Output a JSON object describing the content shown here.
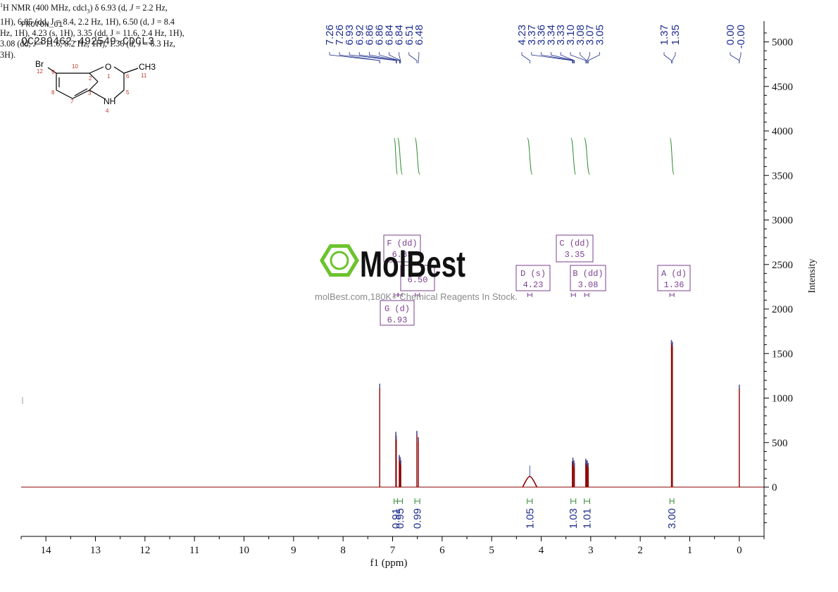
{
  "header": {
    "experiment": "PROTON_01",
    "sample_id": "QC289462-492549-CDCL3"
  },
  "structure": {
    "atoms": {
      "br": "Br",
      "o": "O",
      "nh": "NH",
      "ch3": "CH3"
    },
    "numbers": [
      "1",
      "2",
      "3",
      "4",
      "5",
      "6",
      "7",
      "8",
      "9",
      "10",
      "11",
      "12"
    ]
  },
  "nmr_text": {
    "superscript": "1",
    "line1": "H NMR (400 MHz, cdcl",
    "sub": "3",
    "line1b": ") δ 6.93 (d, ",
    "j": "J",
    "rest": " = 2.2 Hz, 1H), 6.85 (dd, J = 8.4, 2.2 Hz, 1H), 6.50 (d, J = 8.4 Hz, 1H), 4.23 (s, 1H), 3.35 (dd, J = 11.6, 2.4 Hz, 1H), 3.08 (dd, J = 11.6, 8.2 Hz, 1H), 1.36 (d, J = 6.3 Hz, 3H)."
  },
  "watermark": {
    "brand": "MolBest",
    "text": "molBest.com,180K+ Chemical Reagents In Stock."
  },
  "colors": {
    "spectrum": "#8b0000",
    "peak_label": "#1f2f8f",
    "integral": "#2e8b2e",
    "multiplet": "#7b3f8f",
    "logo_green": "#6cc32e"
  },
  "chart_data": {
    "type": "line",
    "title": "",
    "xlabel": "f1 (ppm)",
    "ylabel": "Intensity",
    "xlim": [
      14.5,
      -0.5
    ],
    "ylim": [
      -550,
      5200
    ],
    "x_ticks": [
      14,
      13,
      12,
      11,
      10,
      9,
      8,
      7,
      6,
      5,
      4,
      3,
      2,
      1,
      0
    ],
    "y_ticks": [
      0,
      500,
      1000,
      1500,
      2000,
      2500,
      3000,
      3500,
      4000,
      4500,
      5000
    ],
    "peak_labels": [
      {
        "group": "aromatic",
        "labels": [
          "7.26",
          "7.26",
          "6.93",
          "6.92",
          "6.86",
          "6.86",
          "6.84",
          "6.84",
          "6.51",
          "6.48"
        ]
      },
      {
        "group": "mid",
        "labels": [
          "4.23",
          "3.37",
          "3.36",
          "3.34",
          "3.33",
          "3.10",
          "3.08",
          "3.07",
          "3.05"
        ]
      },
      {
        "group": "methyl",
        "labels": [
          "1.37",
          "1.35"
        ]
      },
      {
        "group": "tms",
        "labels": [
          "0.00",
          "-0.00"
        ]
      }
    ],
    "peaks": [
      {
        "x": 7.26,
        "y": 1160,
        "type": "solvent"
      },
      {
        "x": 6.935,
        "y": 620
      },
      {
        "x": 6.925,
        "y": 580
      },
      {
        "x": 6.865,
        "y": 360
      },
      {
        "x": 6.855,
        "y": 340
      },
      {
        "x": 6.845,
        "y": 330
      },
      {
        "x": 6.835,
        "y": 300
      },
      {
        "x": 6.51,
        "y": 630
      },
      {
        "x": 6.48,
        "y": 560
      },
      {
        "x": 4.23,
        "y": 120,
        "broad": true
      },
      {
        "x": 3.37,
        "y": 290
      },
      {
        "x": 3.36,
        "y": 330
      },
      {
        "x": 3.34,
        "y": 300
      },
      {
        "x": 3.33,
        "y": 270
      },
      {
        "x": 3.1,
        "y": 320
      },
      {
        "x": 3.08,
        "y": 300
      },
      {
        "x": 3.07,
        "y": 300
      },
      {
        "x": 3.05,
        "y": 270
      },
      {
        "x": 1.37,
        "y": 1650
      },
      {
        "x": 1.35,
        "y": 1630
      },
      {
        "x": 0.0,
        "y": 1150
      }
    ],
    "multiplets": [
      {
        "letter": "F (dd)",
        "value": "6.85",
        "x": 6.85
      },
      {
        "letter": "",
        "value": "6.50",
        "x": 6.5
      },
      {
        "letter": "G (d)",
        "value": "6.93",
        "x": 6.93
      },
      {
        "letter": "C (dd)",
        "value": "3.35",
        "x": 3.35
      },
      {
        "letter": "D (s)",
        "value": "4.23",
        "x": 4.23
      },
      {
        "letter": "B (dd)",
        "value": "3.08",
        "x": 3.08
      },
      {
        "letter": "A (d)",
        "value": "1.36",
        "x": 1.36
      }
    ],
    "integrals": [
      {
        "x1": 6.97,
        "x2": 6.9,
        "value": "0.91"
      },
      {
        "x1": 6.9,
        "x2": 6.8,
        "value": "0.95"
      },
      {
        "x1": 6.55,
        "x2": 6.45,
        "value": "0.99"
      },
      {
        "x1": 4.28,
        "x2": 4.18,
        "value": "1.05"
      },
      {
        "x1": 3.4,
        "x2": 3.3,
        "value": "1.03"
      },
      {
        "x1": 3.13,
        "x2": 3.02,
        "value": "1.01"
      },
      {
        "x1": 1.4,
        "x2": 1.32,
        "value": "3.00"
      }
    ]
  }
}
